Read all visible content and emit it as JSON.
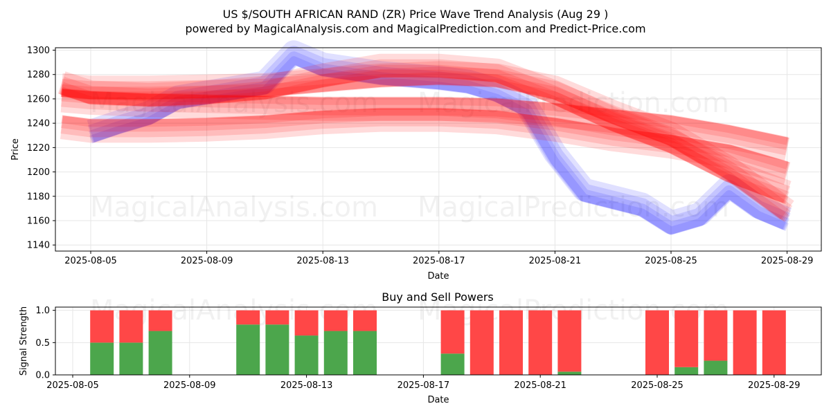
{
  "page": {
    "title": "US $/SOUTH AFRICAN RAND (ZR) Price Wave Trend Analysis (Aug 29 )",
    "subtitle": "powered by MagicalAnalysis.com and MagicalPrediction.com and Predict-Price.com",
    "watermarks": [
      "MagicalAnalysis.com",
      "MagicalPrediction.com"
    ]
  },
  "colors": {
    "red_band": "#ff0000",
    "blue_band": "#0000ff",
    "buy": "#4ca64c",
    "sell": "#ff4747",
    "grid": "#e6e6e6"
  },
  "chart_data": [
    {
      "type": "area",
      "xlabel": "Date",
      "ylabel": "Price",
      "ylim": [
        1135,
        1302
      ],
      "x_ticks": [
        "2025-08-05",
        "2025-08-09",
        "2025-08-13",
        "2025-08-17",
        "2025-08-21",
        "2025-08-25",
        "2025-08-29"
      ],
      "y_ticks": [
        1140,
        1160,
        1180,
        1200,
        1220,
        1240,
        1260,
        1280,
        1300
      ],
      "grid": true,
      "series": [
        {
          "color": "blue",
          "x": [
            "2025-08-05",
            "2025-08-06",
            "2025-08-07",
            "2025-08-08",
            "2025-08-10",
            "2025-08-11",
            "2025-08-12",
            "2025-08-13",
            "2025-08-15",
            "2025-08-17",
            "2025-08-18",
            "2025-08-19",
            "2025-08-20",
            "2025-08-21",
            "2025-08-22",
            "2025-08-24",
            "2025-08-25",
            "2025-08-26",
            "2025-08-27",
            "2025-08-28",
            "2025-08-29"
          ],
          "y": [
            1230,
            1238,
            1245,
            1258,
            1266,
            1270,
            1295,
            1285,
            1278,
            1274,
            1271,
            1264,
            1252,
            1212,
            1182,
            1170,
            1155,
            1162,
            1185,
            1168,
            1158
          ]
        },
        {
          "color": "red",
          "x": [
            "2025-08-04",
            "2025-08-05",
            "2025-08-07",
            "2025-08-09",
            "2025-08-11",
            "2025-08-13",
            "2025-08-15",
            "2025-08-17",
            "2025-08-19",
            "2025-08-21",
            "2025-08-23",
            "2025-08-25",
            "2025-08-27",
            "2025-08-29"
          ],
          "y": [
            1262,
            1260,
            1258,
            1257,
            1256,
            1255,
            1255,
            1255,
            1254,
            1250,
            1245,
            1240,
            1232,
            1222
          ]
        },
        {
          "color": "red",
          "x": [
            "2025-08-04",
            "2025-08-05",
            "2025-08-07",
            "2025-08-09",
            "2025-08-11",
            "2025-08-13",
            "2025-08-15",
            "2025-08-17",
            "2025-08-19",
            "2025-08-21",
            "2025-08-23",
            "2025-08-25",
            "2025-08-27",
            "2025-08-29"
          ],
          "y": [
            1270,
            1262,
            1260,
            1262,
            1266,
            1276,
            1284,
            1284,
            1280,
            1262,
            1240,
            1222,
            1198,
            1180
          ]
        },
        {
          "color": "red",
          "x": [
            "2025-08-04",
            "2025-08-05",
            "2025-08-07",
            "2025-08-09",
            "2025-08-11",
            "2025-08-13",
            "2025-08-15",
            "2025-08-17",
            "2025-08-19",
            "2025-08-21",
            "2025-08-23",
            "2025-08-25",
            "2025-08-27",
            "2025-08-29"
          ],
          "y": [
            1240,
            1237,
            1237,
            1238,
            1240,
            1244,
            1246,
            1246,
            1244,
            1238,
            1230,
            1224,
            1216,
            1202
          ]
        },
        {
          "color": "red",
          "x": [
            "2025-08-04",
            "2025-08-05",
            "2025-08-07",
            "2025-08-09",
            "2025-08-11",
            "2025-08-13",
            "2025-08-15",
            "2025-08-17",
            "2025-08-19",
            "2025-08-21",
            "2025-08-23",
            "2025-08-25",
            "2025-08-27",
            "2025-08-29"
          ],
          "y": [
            1268,
            1266,
            1266,
            1267,
            1268,
            1272,
            1276,
            1278,
            1276,
            1266,
            1246,
            1228,
            1200,
            1165
          ]
        }
      ]
    },
    {
      "type": "bar",
      "title": "Buy and Sell Powers",
      "xlabel": "Date",
      "ylabel": "Signal Strength",
      "ylim": [
        0,
        1.05
      ],
      "x_ticks": [
        "2025-08-05",
        "2025-08-09",
        "2025-08-13",
        "2025-08-17",
        "2025-08-21",
        "2025-08-25",
        "2025-08-29"
      ],
      "y_ticks": [
        "0.0",
        "0.5",
        "1.0"
      ],
      "grid": true,
      "categories": [
        "2025-08-06",
        "2025-08-07",
        "2025-08-08",
        "2025-08-11",
        "2025-08-12",
        "2025-08-13",
        "2025-08-14",
        "2025-08-15",
        "2025-08-18",
        "2025-08-19",
        "2025-08-20",
        "2025-08-21",
        "2025-08-22",
        "2025-08-25",
        "2025-08-26",
        "2025-08-27",
        "2025-08-28",
        "2025-08-29"
      ],
      "buy": [
        0.5,
        0.5,
        0.68,
        0.78,
        0.78,
        0.61,
        0.68,
        0.68,
        0.33,
        0.0,
        0.0,
        0.0,
        0.05,
        0.0,
        0.12,
        0.22,
        0.0,
        0.0
      ],
      "sell": [
        0.5,
        0.5,
        0.32,
        0.22,
        0.22,
        0.39,
        0.32,
        0.32,
        0.67,
        1.0,
        1.0,
        1.0,
        0.95,
        1.0,
        0.88,
        0.78,
        1.0,
        1.0
      ]
    }
  ]
}
